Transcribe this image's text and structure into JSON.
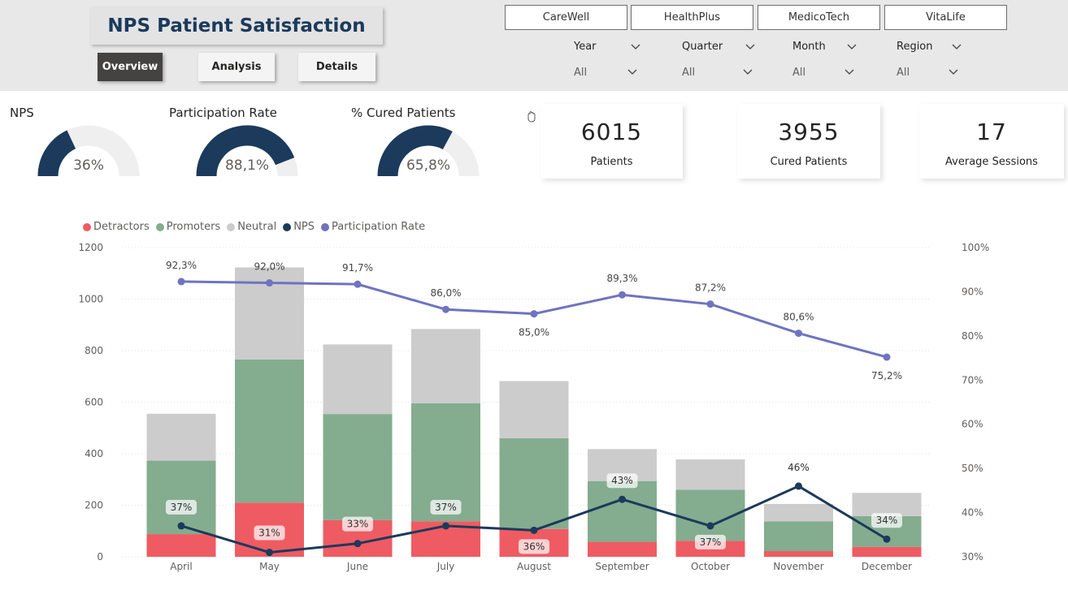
{
  "header": {
    "title": "NPS Patient Satisfaction",
    "nav": [
      {
        "label": "Overview",
        "active": true
      },
      {
        "label": "Analysis",
        "active": false
      },
      {
        "label": "Details",
        "active": false
      }
    ],
    "hospitals": [
      "CareWell",
      "HealthPlus",
      "MedicoTech",
      "VitaLife"
    ],
    "slicers": [
      {
        "label": "Year",
        "value": "All"
      },
      {
        "label": "Quarter",
        "value": "All"
      },
      {
        "label": "Month",
        "value": "All"
      },
      {
        "label": "Region",
        "value": "All"
      }
    ]
  },
  "gauges": [
    {
      "title": "NPS",
      "value_text": "36%",
      "fraction": 0.36
    },
    {
      "title": "Participation Rate",
      "value_text": "88,1%",
      "fraction": 0.881
    },
    {
      "title": "% Cured Patients",
      "value_text": "65,8%",
      "fraction": 0.658
    }
  ],
  "cards": [
    {
      "value": "6015",
      "caption": "Patients"
    },
    {
      "value": "3955",
      "caption": "Cured Patients"
    },
    {
      "value": "17",
      "caption": "Average Sessions"
    }
  ],
  "colors": {
    "detractors": "#ef5b62",
    "promoters": "#84ac8f",
    "neutral": "#cccccc",
    "nps": "#1b3a5c",
    "participation": "#6f73c0",
    "gauge_fill": "#1b3a5c",
    "gauge_track": "#f0efef"
  },
  "chart_data": {
    "type": "bar",
    "stacked": true,
    "legend": [
      "Detractors",
      "Promoters",
      "Neutral",
      "NPS",
      "Participation Rate"
    ],
    "categories": [
      "April",
      "May",
      "June",
      "July",
      "August",
      "September",
      "October",
      "November",
      "December"
    ],
    "series": [
      {
        "name": "Detractors",
        "values": [
          88,
          210,
          142,
          138,
          108,
          58,
          62,
          22,
          38
        ]
      },
      {
        "name": "Promoters",
        "values": [
          285,
          556,
          412,
          458,
          352,
          236,
          198,
          115,
          120
        ]
      },
      {
        "name": "Neutral",
        "values": [
          182,
          357,
          270,
          288,
          222,
          124,
          118,
          68,
          90
        ]
      }
    ],
    "lines": [
      {
        "name": "NPS",
        "axis": "right",
        "values": [
          37,
          31,
          33,
          37,
          36,
          43,
          37,
          46,
          34
        ],
        "labels": [
          "37%",
          "31%",
          "33%",
          "37%",
          "36%",
          "43%",
          "37%",
          "46%",
          "34%"
        ]
      },
      {
        "name": "Participation Rate",
        "axis": "right",
        "values": [
          92.3,
          92.0,
          91.7,
          86.0,
          85.0,
          89.3,
          87.2,
          80.6,
          75.2
        ],
        "labels": [
          "92,3%",
          "92,0%",
          "91,7%",
          "86,0%",
          "85,0%",
          "89,3%",
          "87,2%",
          "80,6%",
          "75,2%"
        ]
      }
    ],
    "left_axis": {
      "min": 0,
      "max": 1200,
      "ticks": [
        "0",
        "200",
        "400",
        "600",
        "800",
        "1000",
        "1200"
      ]
    },
    "right_axis": {
      "min": 30,
      "max": 100,
      "ticks": [
        "30%",
        "40%",
        "50%",
        "60%",
        "70%",
        "80%",
        "90%",
        "100%"
      ]
    }
  }
}
